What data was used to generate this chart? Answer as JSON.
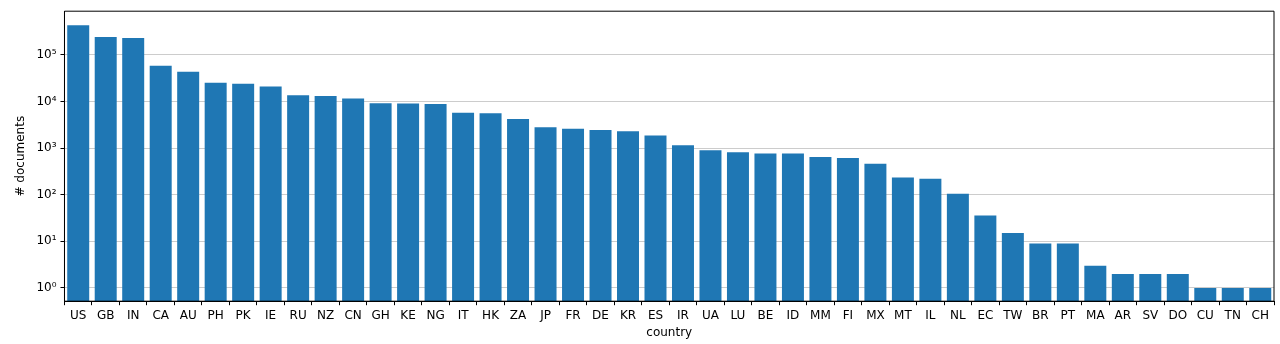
{
  "chart_data": {
    "type": "bar",
    "xlabel": "country",
    "ylabel": "# documents",
    "categories": [
      "US",
      "GB",
      "IN",
      "CA",
      "AU",
      "PH",
      "PK",
      "IE",
      "RU",
      "NZ",
      "CN",
      "GH",
      "KE",
      "NG",
      "IT",
      "HK",
      "ZA",
      "JP",
      "FR",
      "DE",
      "KR",
      "ES",
      "IR",
      "UA",
      "LU",
      "BE",
      "ID",
      "MM",
      "FI",
      "MX",
      "MT",
      "IL",
      "NL",
      "EC",
      "TW",
      "BR",
      "PT",
      "MA",
      "AR",
      "SV",
      "DO",
      "CU",
      "TN",
      "CH"
    ],
    "values": [
      430000,
      240000,
      230000,
      58000,
      43000,
      25000,
      24000,
      21000,
      13500,
      13000,
      11500,
      9100,
      9000,
      8800,
      5700,
      5600,
      4200,
      2800,
      2600,
      2450,
      2300,
      1850,
      1150,
      900,
      810,
      760,
      760,
      640,
      610,
      460,
      235,
      220,
      105,
      36,
      15,
      9,
      9,
      3,
      2,
      2,
      2,
      1,
      1,
      1
    ],
    "color": "#1f77b4",
    "log": "y",
    "ylim": [
      0.52,
      860000
    ],
    "yticks": [
      {
        "value": 1,
        "label": "10⁰"
      },
      {
        "value": 10,
        "label": "10¹"
      },
      {
        "value": 100,
        "label": "10²"
      },
      {
        "value": 1000,
        "label": "10³"
      },
      {
        "value": 10000,
        "label": "10⁴"
      },
      {
        "value": 100000,
        "label": "10⁵"
      }
    ],
    "grid": "y",
    "legend": false
  }
}
